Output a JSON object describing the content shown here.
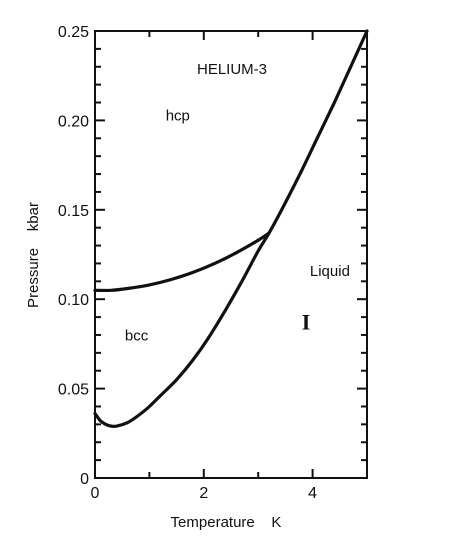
{
  "chart_data": {
    "type": "line",
    "title": "HELIUM-3",
    "xlabel": "Temperature    K",
    "ylabel": "Pressure    kbar",
    "xlim": [
      0,
      5
    ],
    "ylim": [
      0,
      0.25
    ],
    "x_ticks": [
      "0",
      "2",
      "4"
    ],
    "x_tick_values": [
      0,
      2,
      4
    ],
    "y_ticks": [
      "0",
      "0.05",
      "0.10",
      "0.15",
      "0.20",
      "0.25"
    ],
    "y_tick_values": [
      0,
      0.05,
      0.1,
      0.15,
      0.2,
      0.25
    ],
    "grid": false,
    "series": [
      {
        "x": [
          0.0,
          0.1,
          0.2,
          0.3,
          0.4,
          0.6,
          0.8,
          1.0,
          1.2,
          1.5,
          1.8,
          2.1,
          2.4,
          2.7,
          3.0,
          3.2,
          3.5,
          3.8,
          4.1,
          4.4,
          4.7,
          5.0
        ],
        "y": [
          0.036,
          0.032,
          0.03,
          0.029,
          0.029,
          0.031,
          0.035,
          0.04,
          0.046,
          0.055,
          0.066,
          0.079,
          0.094,
          0.11,
          0.127,
          0.137,
          0.154,
          0.172,
          0.191,
          0.21,
          0.23,
          0.25
        ]
      },
      {
        "x": [
          0.0,
          0.3,
          0.6,
          1.0,
          1.4,
          1.8,
          2.2,
          2.6,
          3.0,
          3.2
        ],
        "y": [
          0.105,
          0.105,
          0.106,
          0.108,
          0.111,
          0.115,
          0.12,
          0.126,
          0.133,
          0.137
        ]
      }
    ],
    "annotations": [
      {
        "text": "hcp",
        "x": 1.3,
        "y": 0.2
      },
      {
        "text": "bcc",
        "x": 0.55,
        "y": 0.077
      },
      {
        "text": "Liquid",
        "x": 3.95,
        "y": 0.113
      },
      {
        "text": "I",
        "x": 3.8,
        "y": 0.083
      }
    ]
  }
}
